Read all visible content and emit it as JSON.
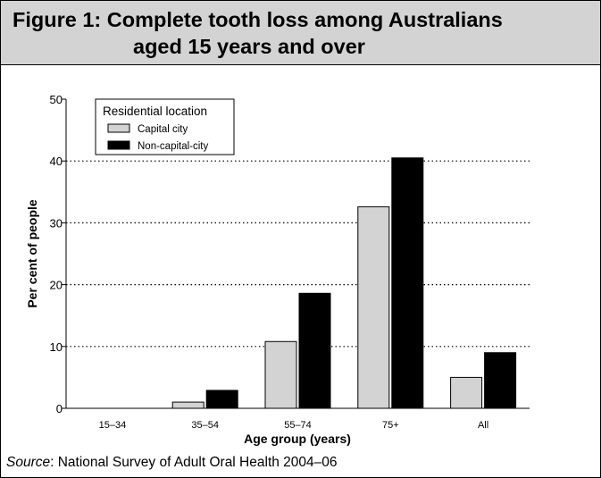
{
  "figure": {
    "title_line1": "Figure 1: Complete tooth loss among Australians",
    "title_line2": "aged 15 years and over",
    "source_label": "Source",
    "source_text": ": National Survey of Adult Oral Health 2004–06"
  },
  "chart_data": {
    "type": "bar",
    "title": "Figure 1: Complete tooth loss among Australians aged 15 years and over",
    "xlabel": "Age group (years)",
    "ylabel": "Per cent of people",
    "categories": [
      "15–34",
      "35–54",
      "55–74",
      "75+",
      "All"
    ],
    "series": [
      {
        "name": "Capital city",
        "color": "#d3d3d3",
        "values": [
          0,
          1.0,
          10.8,
          32.6,
          5.0
        ]
      },
      {
        "name": "Non-capital-city",
        "color": "#000000",
        "values": [
          0,
          2.9,
          18.6,
          40.5,
          9.0
        ]
      }
    ],
    "ylim": [
      0,
      50
    ],
    "yticks": [
      0,
      10,
      20,
      30,
      40,
      50
    ],
    "gridlines": [
      10,
      20,
      30,
      40
    ],
    "grid_style": "dotted",
    "legend": {
      "title": "Residential location",
      "position": "top-left"
    }
  }
}
